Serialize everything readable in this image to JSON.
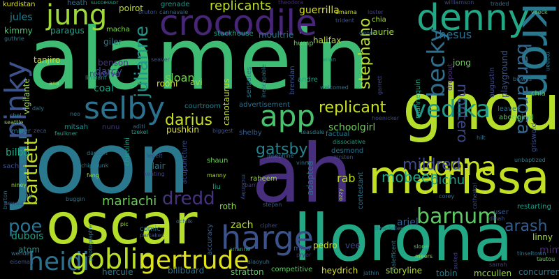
{
  "background": "#000000",
  "palette": [
    "#440154",
    "#3b528b",
    "#21918c",
    "#5ec962",
    "#fde725"
  ],
  "words": [
    {
      "text": "alamein",
      "color": "#3fbc73"
    },
    {
      "text": "ah",
      "color": "#472f7d"
    },
    {
      "text": "joon",
      "color": "#2a788e"
    },
    {
      "text": "ghoul",
      "color": "#b5de2b"
    },
    {
      "text": "llorona",
      "color": "#22a884"
    },
    {
      "text": "oscar",
      "color": "#b5de2b"
    },
    {
      "text": "marissa",
      "color": "#c2df23"
    },
    {
      "text": "crocodile",
      "color": "#482677"
    },
    {
      "text": "denny",
      "color": "#22a884"
    },
    {
      "text": "jung",
      "color": "#9fda3a"
    },
    {
      "text": "kron",
      "color": "#2a788e"
    },
    {
      "text": "selby",
      "color": "#2c718e"
    },
    {
      "text": "pinky",
      "color": "#3b528b"
    },
    {
      "text": "app",
      "color": "#4ac16d"
    },
    {
      "text": "harge",
      "color": "#3b528b"
    },
    {
      "text": "heidi",
      "color": "#2c728e"
    },
    {
      "text": "goblin",
      "color": "#b8de29"
    },
    {
      "text": "gertrude",
      "color": "#dde318"
    },
    {
      "text": "donna",
      "color": "#c8e020"
    },
    {
      "text": "barnum",
      "color": "#5ec962"
    },
    {
      "text": "vedika",
      "color": "#1e9c89"
    },
    {
      "text": "becky",
      "color": "#2e6f8e"
    },
    {
      "text": "replicants",
      "color": "#bddf26"
    },
    {
      "text": "replicant",
      "color": "#cae11f"
    },
    {
      "text": "bartlett",
      "color": "#c2df23"
    },
    {
      "text": "stephano",
      "color": "#b8de29"
    },
    {
      "text": "julianne",
      "color": "#1f988b"
    },
    {
      "text": "darius",
      "color": "#c8e020"
    },
    {
      "text": "mildred",
      "color": "#3e4a89"
    },
    {
      "text": "dredd",
      "color": "#46337e"
    },
    {
      "text": "mariachi",
      "color": "#6ccd5a"
    },
    {
      "text": "gatsby",
      "color": "#26828e"
    },
    {
      "text": "poe",
      "color": "#2c728e"
    },
    {
      "text": "barbarosa",
      "color": "#31688e"
    },
    {
      "text": "arash",
      "color": "#365c8d"
    },
    {
      "text": "montero",
      "color": "#3e4989"
    },
    {
      "text": "mobeen",
      "color": "#22a785"
    },
    {
      "text": "pichu",
      "color": "#1f9a8a"
    },
    {
      "text": "rhesus",
      "color": "#2e6e8e"
    },
    {
      "text": "sloan",
      "color": "#74d055"
    },
    {
      "text": "darcy",
      "color": "#404688"
    },
    {
      "text": "coal",
      "color": "#20a386"
    },
    {
      "text": "roth",
      "color": "#8bd646"
    },
    {
      "text": "zach",
      "color": "#bddf26"
    },
    {
      "text": "ariel",
      "color": "#365c8d"
    },
    {
      "text": "rab",
      "color": "#c0df25"
    },
    {
      "text": "pedro",
      "color": "#d2e21b"
    },
    {
      "text": "hercule",
      "color": "#297b8e"
    },
    {
      "text": "billboard",
      "color": "#2c718e"
    },
    {
      "text": "stratton",
      "color": "#5ec962"
    },
    {
      "text": "heydrich",
      "color": "#d8e219"
    },
    {
      "text": "storyline",
      "color": "#addc30"
    },
    {
      "text": "tobin",
      "color": "#27808e"
    },
    {
      "text": "mccullen",
      "color": "#9bd93c"
    },
    {
      "text": "concurrent",
      "color": "#2a788e"
    },
    {
      "text": "bilbo",
      "color": "#22a884"
    },
    {
      "text": "mimi",
      "color": "#482878"
    },
    {
      "text": "linny",
      "color": "#a2da37"
    },
    {
      "text": "atom",
      "color": "#1f958b"
    },
    {
      "text": "dubois",
      "color": "#1f9f88"
    },
    {
      "text": "schoolgirl",
      "color": "#6ccd5a"
    },
    {
      "text": "benson",
      "color": "#46337e"
    },
    {
      "text": "revolve",
      "color": "#3e4989"
    },
    {
      "text": "limbani",
      "color": "#21918c"
    },
    {
      "text": "giler",
      "color": "#2a788e"
    },
    {
      "text": "paragus",
      "color": "#1fa188"
    },
    {
      "text": "kimmy",
      "color": "#4ac16d"
    },
    {
      "text": "jules",
      "color": "#26818e"
    },
    {
      "text": "tanjiro",
      "color": "#cae11f"
    },
    {
      "text": "poirot",
      "color": "#bddf26"
    },
    {
      "text": "macha",
      "color": "#7fd34e"
    },
    {
      "text": "heath",
      "color": "#2d708e"
    },
    {
      "text": "kurdistan",
      "color": "#dde318"
    },
    {
      "text": "grenade",
      "color": "#1f9a8a"
    },
    {
      "text": "bruton",
      "color": "#3b528b"
    },
    {
      "text": "cannavale",
      "color": "#31688e"
    },
    {
      "text": "successor",
      "color": "#22a884"
    },
    {
      "text": "theodora",
      "color": "#472a7a"
    },
    {
      "text": "amarna",
      "color": "#c8e020"
    },
    {
      "text": "williamson",
      "color": "#3f4788"
    },
    {
      "text": "traded",
      "color": "#2f6c8e"
    },
    {
      "text": "veeck",
      "color": "#5ec962"
    },
    {
      "text": "guerrilla",
      "color": "#d8e219"
    },
    {
      "text": "halifax",
      "color": "#bddf26"
    },
    {
      "text": "trident",
      "color": "#3b528b"
    },
    {
      "text": "loster",
      "color": "#433e85"
    },
    {
      "text": "chia",
      "color": "#a0da39"
    },
    {
      "text": "laurie",
      "color": "#9bd93c"
    },
    {
      "text": "genre",
      "color": "#2d708e"
    },
    {
      "text": "moultrie",
      "color": "#2c728e"
    },
    {
      "text": "stackhouse",
      "color": "#1fa188"
    },
    {
      "text": "hump",
      "color": "#63cb5f"
    },
    {
      "text": "seaver",
      "color": "#3c4f8a"
    },
    {
      "text": "winn",
      "color": "#1e9b8a"
    },
    {
      "text": "jong",
      "color": "#6ccd5a"
    },
    {
      "text": "playground",
      "color": "#3b528b"
    },
    {
      "text": "augustin",
      "color": "#3f4889"
    },
    {
      "text": "regaan",
      "color": "#2a788e"
    },
    {
      "text": "biswas",
      "color": "#2c718e"
    },
    {
      "text": "chia",
      "color": "#5ec962"
    },
    {
      "text": "vigilante",
      "color": "#9bd93c"
    },
    {
      "text": "guthrie",
      "color": "#277f8e"
    },
    {
      "text": "ana",
      "color": "#a8db34"
    },
    {
      "text": "daly",
      "color": "#2a778e"
    },
    {
      "text": "chel",
      "color": "#25848e"
    },
    {
      "text": "seattle",
      "color": "#86d549"
    },
    {
      "text": "miser",
      "color": "#2c718e"
    },
    {
      "text": "zeca",
      "color": "#3b528b"
    },
    {
      "text": "faulkner",
      "color": "#1fa287"
    },
    {
      "text": "neo",
      "color": "#2c728e"
    },
    {
      "text": "mitsah",
      "color": "#21918c"
    },
    {
      "text": "nunu",
      "color": "#46327e"
    },
    {
      "text": "aditi",
      "color": "#2f6b8e"
    },
    {
      "text": "tzekel",
      "color": "#1fa088"
    },
    {
      "text": "roohi",
      "color": "#d5e21a"
    },
    {
      "text": "avi",
      "color": "#9bd93c"
    },
    {
      "text": "courtroom",
      "color": "#26828e"
    },
    {
      "text": "pushkin",
      "color": "#dde318"
    },
    {
      "text": "biggest",
      "color": "#3b528b"
    },
    {
      "text": "shelby",
      "color": "#365d8d"
    },
    {
      "text": "canotaurus",
      "color": "#c2df23"
    },
    {
      "text": "sensates",
      "color": "#2a788e"
    },
    {
      "text": "inescapable",
      "color": "#2a788e"
    },
    {
      "text": "brendan",
      "color": "#3b528b"
    },
    {
      "text": "andre",
      "color": "#20a386"
    },
    {
      "text": "welcomed",
      "color": "#2c728e"
    },
    {
      "text": "garrett",
      "color": "#3e4989"
    },
    {
      "text": "mannequin",
      "color": "#22a884"
    },
    {
      "text": "dropout",
      "color": "#472a7a"
    },
    {
      "text": "leavey",
      "color": "#2c718e"
    },
    {
      "text": "aboriginal",
      "color": "#5ec962"
    },
    {
      "text": "griswold",
      "color": "#3b528b"
    },
    {
      "text": "advertisement",
      "color": "#2d708e"
    },
    {
      "text": "factual",
      "color": "#2a788e"
    },
    {
      "text": "teasdale",
      "color": "#26818e"
    },
    {
      "text": "hoenicker",
      "color": "#3e4989"
    },
    {
      "text": "dissociative",
      "color": "#1fa188"
    },
    {
      "text": "kirsten",
      "color": "#3b528b"
    },
    {
      "text": "desmond",
      "color": "#2c728e"
    },
    {
      "text": "hilt",
      "color": "#2c718e"
    },
    {
      "text": "unbaptized",
      "color": "#2a788e"
    },
    {
      "text": "cathedral",
      "color": "#3b528b"
    },
    {
      "text": "corey",
      "color": "#2c718e"
    },
    {
      "text": "restarting",
      "color": "#1f9f88"
    },
    {
      "text": "tautou",
      "color": "#6ccd5a"
    },
    {
      "text": "dinah",
      "color": "#3b528b"
    },
    {
      "text": "user",
      "color": "#365c8d"
    },
    {
      "text": "josephine",
      "color": "#2c718e"
    },
    {
      "text": "vinny",
      "color": "#2a788e"
    },
    {
      "text": "shaun",
      "color": "#6ccd5a"
    },
    {
      "text": "mckinley",
      "color": "#3b528b"
    },
    {
      "text": "chicolini",
      "color": "#1f9e89"
    },
    {
      "text": "lepelt",
      "color": "#3e4989"
    },
    {
      "text": "keating",
      "color": "#433e85"
    },
    {
      "text": "damien",
      "color": "#2c728e"
    },
    {
      "text": "chipmunk",
      "color": "#26818e"
    },
    {
      "text": "fang",
      "color": "#9bd93c"
    },
    {
      "text": "blair",
      "color": "#2a788e"
    },
    {
      "text": "acupuncture",
      "color": "#3b528b"
    },
    {
      "text": "manny",
      "color": "#addc30"
    },
    {
      "text": "liu",
      "color": "#20a386"
    },
    {
      "text": "barr",
      "color": "#433e85"
    },
    {
      "text": "raheem",
      "color": "#9bd93c"
    },
    {
      "text": "stepan",
      "color": "#365c8d"
    },
    {
      "text": "ozzy",
      "color": "#9bd93c"
    },
    {
      "text": "contestant",
      "color": "#2c718e"
    },
    {
      "text": "adapted",
      "color": "#2f6c8e"
    },
    {
      "text": "sachin",
      "color": "#3b528b"
    },
    {
      "text": "burton",
      "color": "#2c718e"
    },
    {
      "text": "niney",
      "color": "#a2da37"
    },
    {
      "text": "jay",
      "color": "#2a788e"
    },
    {
      "text": "newest",
      "color": "#3b528b"
    },
    {
      "text": "buggin",
      "color": "#2c728e"
    },
    {
      "text": "photographer",
      "color": "#2a788e"
    },
    {
      "text": "pic",
      "color": "#9bd93c"
    },
    {
      "text": "ochlik",
      "color": "#2a788e"
    },
    {
      "text": "partakes",
      "color": "#3b528b"
    },
    {
      "text": "comic",
      "color": "#2c718e"
    },
    {
      "text": "accuracy",
      "color": "#365d8d"
    },
    {
      "text": "cipher",
      "color": "#3e4989"
    },
    {
      "text": "arianne",
      "color": "#22a884"
    },
    {
      "text": "mika",
      "color": "#3b528b"
    },
    {
      "text": "pryor",
      "color": "#472a7a"
    },
    {
      "text": "vee",
      "color": "#3e4989"
    },
    {
      "text": "dwarfelles",
      "color": "#2c718e"
    },
    {
      "text": "jathin",
      "color": "#2c718e"
    },
    {
      "text": "malefficent",
      "color": "#2a788e"
    },
    {
      "text": "payne",
      "color": "#433e85"
    },
    {
      "text": "slone",
      "color": "#5ec962"
    },
    {
      "text": "meers",
      "color": "#9bd93c"
    },
    {
      "text": "competitive",
      "color": "#5ec962"
    },
    {
      "text": "wendell",
      "color": "#2c728e"
    },
    {
      "text": "eiseman",
      "color": "#3b528b"
    },
    {
      "text": "alaoyuh",
      "color": "#2c718e"
    },
    {
      "text": "tinseltown",
      "color": "#2a788e"
    },
    {
      "text": "sarrah",
      "color": "#433e85"
    }
  ]
}
